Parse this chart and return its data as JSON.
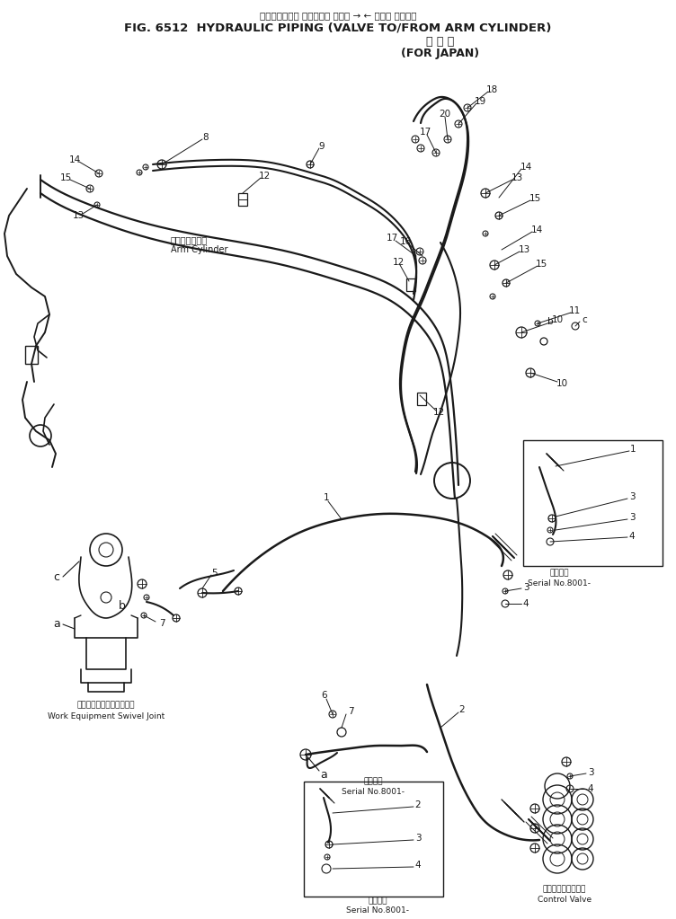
{
  "title_jp": "ハイドロリック パイピング バルブ → ← アーム シリンダ",
  "title_en": "FIG. 6512  HYDRAULIC PIPING (VALVE TO/FROM ARM CYLINDER)",
  "subtitle_jp": "国 内 向",
  "subtitle_en": "(FOR JAPAN)",
  "bg_color": "#ffffff",
  "line_color": "#1a1a1a",
  "text_color": "#1a1a1a",
  "lfs": 7.5,
  "arm_cylinder_jp": "アームシリンダ",
  "arm_cylinder_en": "Arm Cylinder",
  "swivel_joint_jp": "作業機スイベルジョイント",
  "swivel_joint_en": "Work Equipment Swivel Joint",
  "control_valve_jp": "コントロールバルブ",
  "control_valve_en": "Control Valve",
  "serial_jp": "適用号機",
  "serial_en": "Serial No.8001-"
}
